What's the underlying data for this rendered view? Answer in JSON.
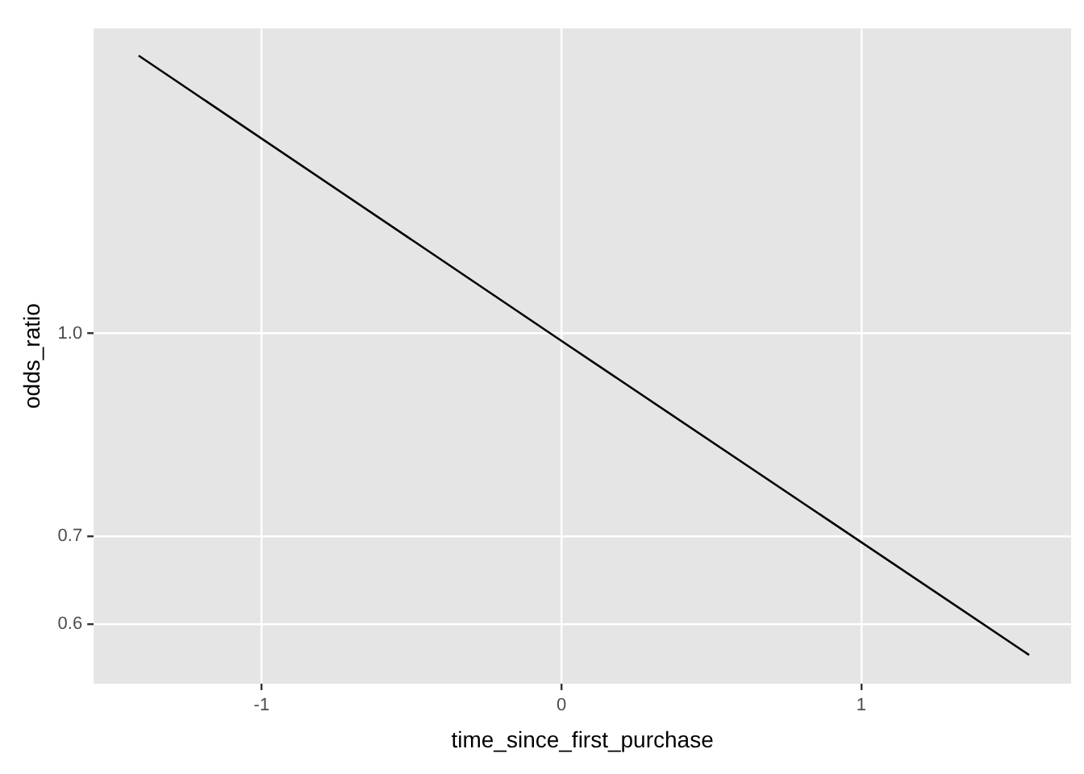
{
  "chart_data": {
    "type": "line",
    "xlabel": "time_since_first_purchase",
    "ylabel": "odds_ratio",
    "x": [
      -1.41,
      0,
      1.56
    ],
    "series": [
      {
        "color": "#000000",
        "values": [
          1.63,
          0.987,
          0.568
        ]
      }
    ],
    "xlim": [
      -1.56,
      1.7
    ],
    "xticks": [
      -1,
      0,
      1
    ],
    "ylim": [
      0.54,
      1.71
    ],
    "yticks": [
      0.6,
      0.7,
      {
        "value": 1,
        "label": "1.0"
      }
    ],
    "log": "y",
    "grid": true,
    "marker": "none",
    "line_style": "solid",
    "legend": false
  }
}
